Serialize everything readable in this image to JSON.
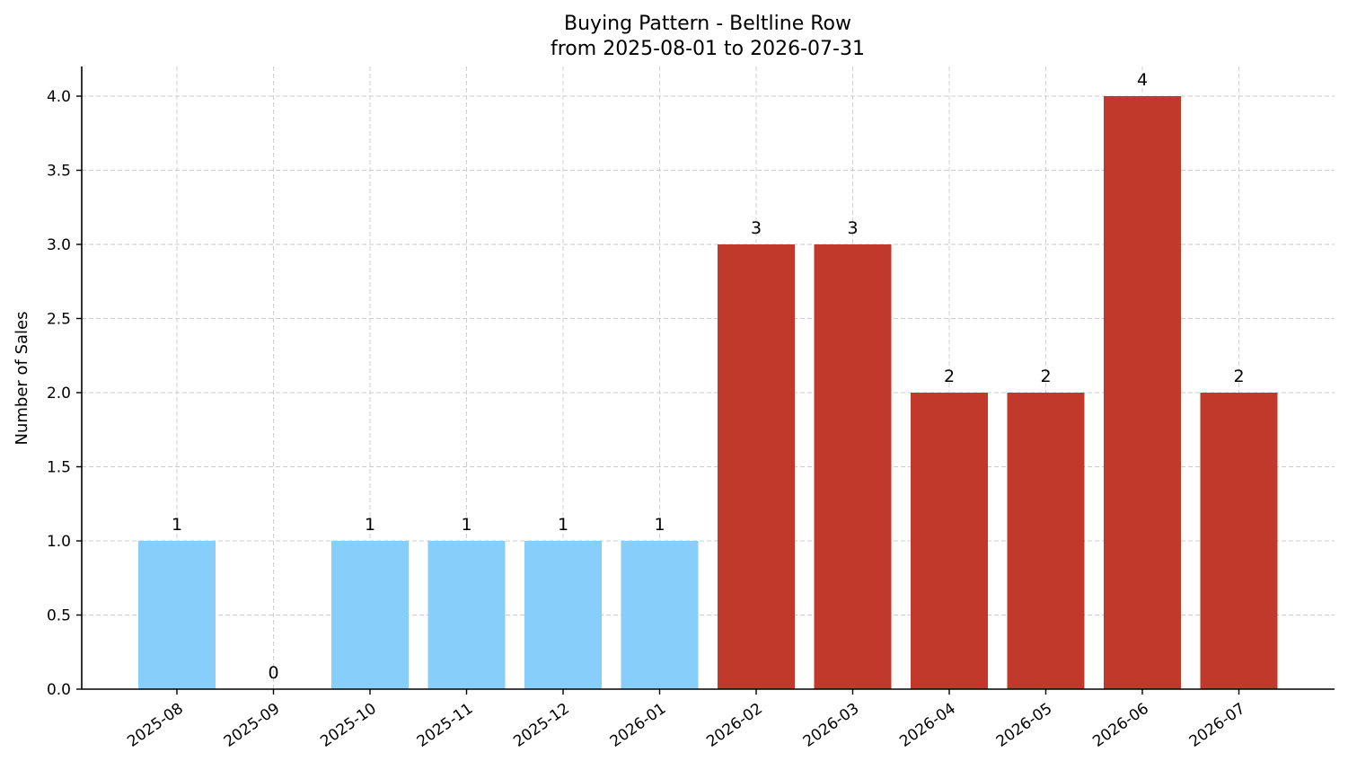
{
  "chart_data": {
    "type": "bar",
    "title": "Buying Pattern - Beltline Row",
    "subtitle": "from 2025-08-01 to 2026-07-31",
    "xlabel": "",
    "ylabel": "Number of Sales",
    "ylim": [
      0,
      4.2
    ],
    "yticks": [
      "0.0",
      "0.5",
      "1.0",
      "1.5",
      "2.0",
      "2.5",
      "3.0",
      "3.5",
      "4.0"
    ],
    "grid": true,
    "categories": [
      "2025-08",
      "2025-09",
      "2025-10",
      "2025-11",
      "2025-12",
      "2026-01",
      "2026-02",
      "2026-03",
      "2026-04",
      "2026-05",
      "2026-06",
      "2026-07"
    ],
    "values": [
      1,
      0,
      1,
      1,
      1,
      1,
      3,
      3,
      2,
      2,
      4,
      2
    ],
    "data_labels": [
      "1",
      "0",
      "1",
      "1",
      "1",
      "1",
      "3",
      "3",
      "2",
      "2",
      "4",
      "2"
    ],
    "bar_colors": [
      "#87cefa",
      "#87cefa",
      "#87cefa",
      "#87cefa",
      "#87cefa",
      "#87cefa",
      "#c0392b",
      "#c0392b",
      "#c0392b",
      "#c0392b",
      "#c0392b",
      "#c0392b"
    ]
  }
}
